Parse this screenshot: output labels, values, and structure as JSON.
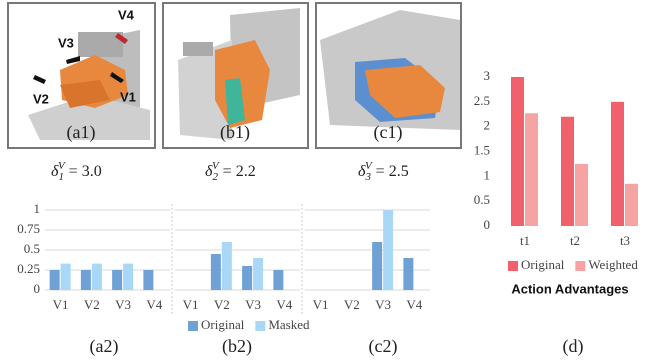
{
  "panels": {
    "images": [
      {
        "caption": "(a1)",
        "labels": [
          "V4",
          "V3",
          "V2",
          "V1"
        ]
      },
      {
        "caption": "(b1)"
      },
      {
        "caption": "(c1)"
      }
    ],
    "formulas": [
      {
        "symbol": "δ",
        "sub": "1",
        "sup": "V",
        "rhs": " = 3.0"
      },
      {
        "symbol": "δ",
        "sub": "2",
        "sup": "V",
        "rhs": " = 2.2"
      },
      {
        "symbol": "δ",
        "sub": "3",
        "sup": "V",
        "rhs": " = 2.5"
      }
    ],
    "chart_captions": [
      "(a2)",
      "(b2)",
      "(c2)",
      "(d)"
    ]
  },
  "chart_data": [
    {
      "type": "bar",
      "categories": [
        "V1",
        "V2",
        "V3",
        "V4",
        "V1",
        "V2",
        "V3",
        "V4",
        "V1",
        "V2",
        "V3",
        "V4"
      ],
      "series": [
        {
          "name": "Original",
          "color": "#6fa0d6",
          "values": [
            0.25,
            0.25,
            0.25,
            0.25,
            null,
            0.45,
            0.3,
            0.25,
            null,
            null,
            0.6,
            0.4
          ]
        },
        {
          "name": "Masked",
          "color": "#a8d8f6",
          "values": [
            0.33,
            0.33,
            0.33,
            null,
            null,
            0.6,
            0.4,
            null,
            null,
            null,
            1,
            null
          ]
        }
      ],
      "ylim": [
        0,
        1
      ],
      "yticks": [
        0,
        0.25,
        0.5,
        0.75,
        1
      ],
      "grid": true,
      "legend": "bottom"
    },
    {
      "type": "bar",
      "x_label": "Action Advantages",
      "categories": [
        "t1",
        "t2",
        "t3"
      ],
      "series": [
        {
          "name": "Original",
          "color": "#f0616b",
          "values": [
            3,
            2.2,
            2.5
          ]
        },
        {
          "name": "Weighted",
          "color": "#f6a3a3",
          "values": [
            2.27,
            1.25,
            0.85
          ]
        }
      ],
      "ylim": [
        0,
        3
      ],
      "yticks": [
        0,
        0.5,
        1,
        1.5,
        2,
        2.5,
        3
      ],
      "grid": false,
      "legend": "bottom"
    }
  ]
}
